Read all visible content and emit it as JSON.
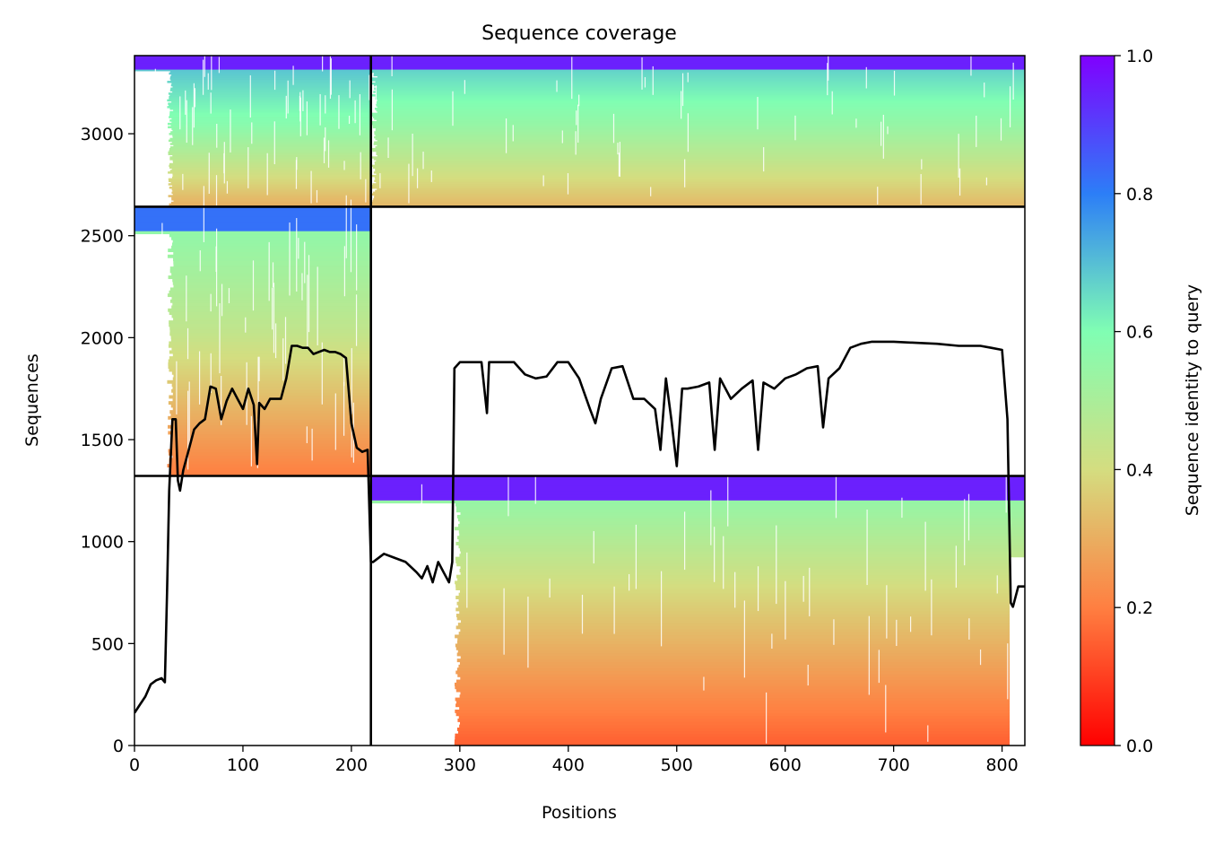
{
  "chart_data": {
    "type": "heatmap",
    "title": "Sequence coverage",
    "xlabel": "Positions",
    "ylabel": "Sequences",
    "xlim": [
      0,
      821
    ],
    "ylim": [
      0,
      3383
    ],
    "x_ticks": [
      0,
      100,
      200,
      300,
      400,
      500,
      600,
      700,
      800
    ],
    "y_ticks": [
      0,
      500,
      1000,
      1500,
      2000,
      2500,
      3000
    ],
    "grid": false,
    "colorbar": {
      "label": "Sequence identity to query",
      "colormap": "rainbow_r",
      "range": [
        0.0,
        1.0
      ],
      "ticks": [
        "0.0",
        "0.2",
        "0.4",
        "0.6",
        "0.8",
        "1.0"
      ],
      "colors": [
        "#ff0000",
        "#ff7f41",
        "#d4dd80",
        "#80feb3",
        "#2c7ef7",
        "#8000ff"
      ]
    },
    "chain_boundaries": {
      "x": [
        218
      ],
      "y": [
        1322,
        2642
      ]
    },
    "blocks": [
      {
        "x_range": [
          0,
          218
        ],
        "y_range": [
          2642,
          3383
        ],
        "x_start": 30,
        "identity_top": 0.95,
        "identity_mid": 0.58,
        "identity_bottom": 0.3
      },
      {
        "x_range": [
          218,
          821
        ],
        "y_range": [
          2642,
          3383
        ],
        "x_start": 218,
        "identity_top": 0.95,
        "identity_mid": 0.55,
        "identity_bottom": 0.32
      },
      {
        "x_range": [
          0,
          218
        ],
        "y_range": [
          1322,
          2642
        ],
        "x_start": 30,
        "identity_top": 0.82,
        "identity_mid": 0.45,
        "identity_bottom": 0.2
      },
      {
        "x_range": [
          218,
          821
        ],
        "y_range": [
          0,
          1322
        ],
        "x_start": 295,
        "identity_top": 0.95,
        "identity_mid": 0.38,
        "identity_bottom": 0.15
      }
    ],
    "series": [
      {
        "type": "line",
        "color": "#000000",
        "x": [
          0,
          5,
          10,
          15,
          20,
          25,
          28,
          30,
          32,
          35,
          38,
          40,
          42,
          45,
          50,
          55,
          60,
          65,
          70,
          75,
          80,
          85,
          90,
          95,
          100,
          105,
          110,
          113,
          115,
          120,
          125,
          130,
          135,
          140,
          145,
          150,
          155,
          160,
          165,
          170,
          175,
          180,
          185,
          190,
          195,
          200,
          205,
          210,
          215,
          218,
          220,
          225,
          230,
          240,
          250,
          260,
          265,
          270,
          275,
          280,
          285,
          290,
          293,
          295,
          300,
          310,
          320,
          325,
          327,
          330,
          340,
          350,
          360,
          370,
          380,
          390,
          400,
          410,
          420,
          425,
          430,
          440,
          450,
          460,
          470,
          480,
          485,
          490,
          495,
          500,
          505,
          510,
          520,
          530,
          535,
          540,
          550,
          560,
          570,
          575,
          580,
          590,
          600,
          610,
          620,
          630,
          635,
          640,
          650,
          660,
          670,
          680,
          690,
          700,
          720,
          740,
          760,
          780,
          790,
          800,
          805,
          808,
          810,
          815,
          821
        ],
        "y": [
          160,
          200,
          240,
          300,
          320,
          330,
          310,
          750,
          1250,
          1600,
          1600,
          1300,
          1250,
          1350,
          1450,
          1550,
          1580,
          1600,
          1760,
          1750,
          1600,
          1690,
          1750,
          1700,
          1650,
          1750,
          1670,
          1380,
          1680,
          1650,
          1700,
          1700,
          1700,
          1800,
          1960,
          1960,
          1950,
          1950,
          1920,
          1930,
          1940,
          1930,
          1930,
          1920,
          1900,
          1580,
          1460,
          1440,
          1450,
          900,
          900,
          920,
          940,
          920,
          900,
          850,
          820,
          880,
          800,
          900,
          850,
          800,
          900,
          1850,
          1880,
          1880,
          1880,
          1630,
          1880,
          1880,
          1880,
          1880,
          1820,
          1800,
          1810,
          1880,
          1880,
          1800,
          1650,
          1580,
          1700,
          1850,
          1860,
          1700,
          1700,
          1650,
          1450,
          1800,
          1600,
          1370,
          1750,
          1750,
          1760,
          1780,
          1450,
          1800,
          1700,
          1750,
          1790,
          1450,
          1780,
          1750,
          1800,
          1820,
          1850,
          1860,
          1560,
          1800,
          1850,
          1950,
          1970,
          1980,
          1980,
          1980,
          1975,
          1970,
          1960,
          1960,
          1950,
          1940,
          1600,
          700,
          680,
          780,
          780
        ]
      }
    ]
  }
}
